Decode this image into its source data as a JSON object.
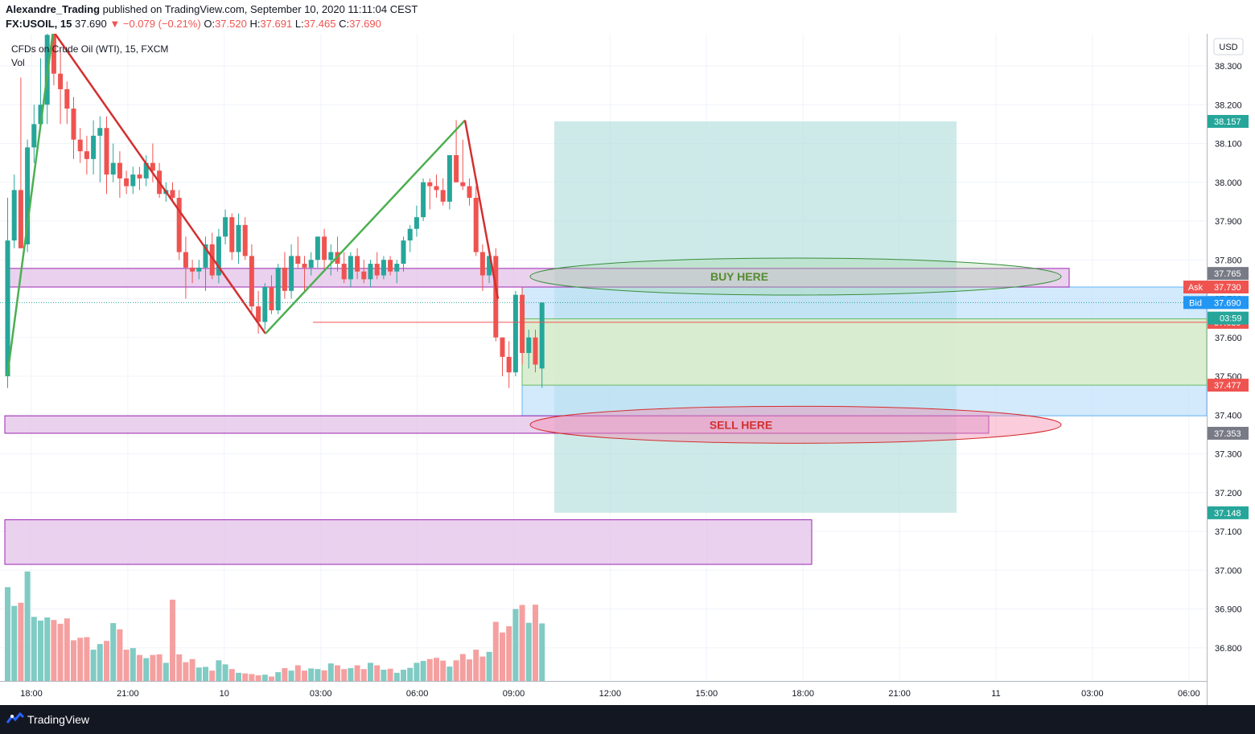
{
  "header": {
    "author": "Alexandre_Trading",
    "published": "published on TradingView.com, September 10, 2020 11:11:04 CEST",
    "symbol_tf": "FX:USOIL, 15",
    "last": "37.690",
    "change": "▼ −0.079 (−0.21%)",
    "o_label": "O:",
    "o": "37.520",
    "h_label": "H:",
    "h": "37.691",
    "l_label": "L:",
    "l": "37.465",
    "c_label": "C:",
    "c": "37.690"
  },
  "legend": {
    "instrument": "CFDs on Crude Oil (WTI), 15, FXCM",
    "vol": "Vol"
  },
  "currency": "USD",
  "annotations": {
    "buy": "BUY HERE",
    "sell": "SELL HERE"
  },
  "countdown": "03:59",
  "footer": {
    "brand": "TradingView"
  },
  "colors": {
    "up": "#26a69a",
    "down": "#ef5350",
    "zone": "#e1bee7",
    "zone_border": "#9c27b0",
    "target": "#b2dfdb",
    "grid": "#f0f3fa"
  },
  "chart_data": {
    "type": "candlestick",
    "y_range": [
      36.72,
      38.39
    ],
    "y_ticks": [
      "38.300",
      "38.200",
      "38.100",
      "38.000",
      "37.900",
      "37.800",
      "37.700",
      "37.600",
      "37.500",
      "37.400",
      "37.300",
      "37.200",
      "37.100",
      "37.000",
      "36.900",
      "36.800"
    ],
    "x_ticks": [
      "18:00",
      "21:00",
      "10",
      "03:00",
      "06:00",
      "09:00",
      "12:00",
      "15:00",
      "18:00",
      "21:00",
      "11",
      "03:00",
      "06:00"
    ],
    "price_labels": [
      {
        "prefix": "",
        "text": "38.157",
        "value": 38.157,
        "color": "#26a69a"
      },
      {
        "prefix": "",
        "text": "37.765",
        "value": 37.765,
        "color": "#787b86"
      },
      {
        "prefix": "Ask",
        "text": "37.730",
        "value": 37.73,
        "color": "#ef5350"
      },
      {
        "prefix": "",
        "text": "37.690",
        "value": 37.69,
        "color": "#26a69a"
      },
      {
        "prefix": "Bid",
        "text": "37.690",
        "value": 37.69,
        "color": "#2196f3"
      },
      {
        "prefix": "",
        "text": "37.639",
        "value": 37.639,
        "color": "#ef5350"
      },
      {
        "prefix": "",
        "text": "37.477",
        "value": 37.477,
        "color": "#ef5350"
      },
      {
        "prefix": "",
        "text": "37.353",
        "value": 37.353,
        "color": "#787b86"
      },
      {
        "prefix": "",
        "text": "37.148",
        "value": 37.148,
        "color": "#26a69a"
      }
    ],
    "zones": [
      {
        "label": "upper",
        "from": 37.73,
        "to": 37.778
      },
      {
        "label": "lower",
        "from": 37.353,
        "to": 37.398
      },
      {
        "label": "bottom",
        "from": 37.015,
        "to": 37.13
      }
    ],
    "target_box": {
      "from": 37.148,
      "to": 38.157
    },
    "position": {
      "stop_top": 37.73,
      "entry": 37.639,
      "avg": 37.648,
      "tp": 37.477,
      "bottom": 37.398
    },
    "zigzag": [
      37.5,
      38.39,
      37.61,
      38.16,
      37.7
    ],
    "candles": [
      {
        "o": 37.5,
        "h": 37.96,
        "l": 37.47,
        "c": 37.85
      },
      {
        "o": 37.85,
        "h": 38.02,
        "l": 37.83,
        "c": 37.98
      },
      {
        "o": 37.98,
        "h": 38.27,
        "l": 37.83,
        "c": 37.83
      },
      {
        "o": 37.84,
        "h": 38.11,
        "l": 37.82,
        "c": 38.09
      },
      {
        "o": 38.09,
        "h": 38.2,
        "l": 38.05,
        "c": 38.15
      },
      {
        "o": 38.15,
        "h": 38.32,
        "l": 38.15,
        "c": 38.2
      },
      {
        "o": 38.2,
        "h": 38.39,
        "l": 38.15,
        "c": 38.38
      },
      {
        "o": 38.38,
        "h": 38.39,
        "l": 38.25,
        "c": 38.28
      },
      {
        "o": 38.28,
        "h": 38.34,
        "l": 38.15,
        "c": 38.24
      },
      {
        "o": 38.24,
        "h": 38.26,
        "l": 38.15,
        "c": 38.19
      },
      {
        "o": 38.19,
        "h": 38.22,
        "l": 38.06,
        "c": 38.11
      },
      {
        "o": 38.11,
        "h": 38.14,
        "l": 38.05,
        "c": 38.08
      },
      {
        "o": 38.08,
        "h": 38.12,
        "l": 38.02,
        "c": 38.06
      },
      {
        "o": 38.06,
        "h": 38.16,
        "l": 38.02,
        "c": 38.12
      },
      {
        "o": 38.12,
        "h": 38.17,
        "l": 38.0,
        "c": 38.14
      },
      {
        "o": 38.14,
        "h": 38.17,
        "l": 37.97,
        "c": 38.02
      },
      {
        "o": 38.02,
        "h": 38.1,
        "l": 38.0,
        "c": 38.05
      },
      {
        "o": 38.05,
        "h": 38.08,
        "l": 37.96,
        "c": 38.01
      },
      {
        "o": 38.01,
        "h": 38.03,
        "l": 37.97,
        "c": 37.99
      },
      {
        "o": 37.99,
        "h": 38.04,
        "l": 37.97,
        "c": 38.02
      },
      {
        "o": 38.02,
        "h": 38.04,
        "l": 37.98,
        "c": 38.01
      },
      {
        "o": 38.01,
        "h": 38.07,
        "l": 37.99,
        "c": 38.05
      },
      {
        "o": 38.05,
        "h": 38.1,
        "l": 38.0,
        "c": 38.03
      },
      {
        "o": 38.03,
        "h": 38.05,
        "l": 37.96,
        "c": 37.97
      },
      {
        "o": 37.97,
        "h": 38.0,
        "l": 37.95,
        "c": 37.98
      },
      {
        "o": 37.98,
        "h": 38.0,
        "l": 37.95,
        "c": 37.96
      },
      {
        "o": 37.96,
        "h": 37.98,
        "l": 37.8,
        "c": 37.82
      },
      {
        "o": 37.82,
        "h": 37.86,
        "l": 37.7,
        "c": 37.78
      },
      {
        "o": 37.78,
        "h": 37.8,
        "l": 37.74,
        "c": 37.77
      },
      {
        "o": 37.77,
        "h": 37.8,
        "l": 37.75,
        "c": 37.78
      },
      {
        "o": 37.78,
        "h": 37.86,
        "l": 37.72,
        "c": 37.84
      },
      {
        "o": 37.84,
        "h": 37.87,
        "l": 37.75,
        "c": 37.76
      },
      {
        "o": 37.76,
        "h": 37.88,
        "l": 37.74,
        "c": 37.86
      },
      {
        "o": 37.86,
        "h": 37.93,
        "l": 37.84,
        "c": 37.91
      },
      {
        "o": 37.91,
        "h": 37.92,
        "l": 37.8,
        "c": 37.82
      },
      {
        "o": 37.82,
        "h": 37.92,
        "l": 37.79,
        "c": 37.89
      },
      {
        "o": 37.89,
        "h": 37.91,
        "l": 37.8,
        "c": 37.81
      },
      {
        "o": 37.81,
        "h": 37.84,
        "l": 37.66,
        "c": 37.68
      },
      {
        "o": 37.68,
        "h": 37.72,
        "l": 37.61,
        "c": 37.64
      },
      {
        "o": 37.64,
        "h": 37.74,
        "l": 37.62,
        "c": 37.73
      },
      {
        "o": 37.73,
        "h": 37.76,
        "l": 37.66,
        "c": 37.67
      },
      {
        "o": 37.67,
        "h": 37.79,
        "l": 37.66,
        "c": 37.78
      },
      {
        "o": 37.78,
        "h": 37.82,
        "l": 37.7,
        "c": 37.72
      },
      {
        "o": 37.72,
        "h": 37.84,
        "l": 37.7,
        "c": 37.81
      },
      {
        "o": 37.81,
        "h": 37.86,
        "l": 37.78,
        "c": 37.79
      },
      {
        "o": 37.79,
        "h": 37.81,
        "l": 37.72,
        "c": 37.78
      },
      {
        "o": 37.78,
        "h": 37.82,
        "l": 37.76,
        "c": 37.8
      },
      {
        "o": 37.8,
        "h": 37.86,
        "l": 37.78,
        "c": 37.86
      },
      {
        "o": 37.86,
        "h": 37.88,
        "l": 37.77,
        "c": 37.8
      },
      {
        "o": 37.8,
        "h": 37.84,
        "l": 37.76,
        "c": 37.82
      },
      {
        "o": 37.82,
        "h": 37.86,
        "l": 37.77,
        "c": 37.79
      },
      {
        "o": 37.79,
        "h": 37.82,
        "l": 37.74,
        "c": 37.75
      },
      {
        "o": 37.75,
        "h": 37.82,
        "l": 37.73,
        "c": 37.81
      },
      {
        "o": 37.81,
        "h": 37.83,
        "l": 37.75,
        "c": 37.77
      },
      {
        "o": 37.77,
        "h": 37.8,
        "l": 37.74,
        "c": 37.75
      },
      {
        "o": 37.75,
        "h": 37.8,
        "l": 37.73,
        "c": 37.79
      },
      {
        "o": 37.79,
        "h": 37.82,
        "l": 37.75,
        "c": 37.76
      },
      {
        "o": 37.76,
        "h": 37.81,
        "l": 37.75,
        "c": 37.8
      },
      {
        "o": 37.8,
        "h": 37.81,
        "l": 37.76,
        "c": 37.77
      },
      {
        "o": 37.77,
        "h": 37.8,
        "l": 37.74,
        "c": 37.79
      },
      {
        "o": 37.79,
        "h": 37.86,
        "l": 37.77,
        "c": 37.85
      },
      {
        "o": 37.85,
        "h": 37.89,
        "l": 37.82,
        "c": 37.88
      },
      {
        "o": 37.88,
        "h": 37.94,
        "l": 37.86,
        "c": 37.91
      },
      {
        "o": 37.91,
        "h": 38.01,
        "l": 37.9,
        "c": 38.0
      },
      {
        "o": 38.0,
        "h": 38.01,
        "l": 37.93,
        "c": 37.99
      },
      {
        "o": 37.99,
        "h": 38.02,
        "l": 37.96,
        "c": 37.98
      },
      {
        "o": 37.98,
        "h": 38.01,
        "l": 37.94,
        "c": 37.95
      },
      {
        "o": 37.95,
        "h": 38.07,
        "l": 37.93,
        "c": 38.07
      },
      {
        "o": 38.07,
        "h": 38.16,
        "l": 38.0,
        "c": 38.0
      },
      {
        "o": 38.0,
        "h": 38.11,
        "l": 37.98,
        "c": 37.99
      },
      {
        "o": 37.99,
        "h": 38.01,
        "l": 37.94,
        "c": 37.96
      },
      {
        "o": 37.96,
        "h": 37.99,
        "l": 37.81,
        "c": 37.82
      },
      {
        "o": 37.82,
        "h": 37.84,
        "l": 37.72,
        "c": 37.76
      },
      {
        "o": 37.76,
        "h": 37.82,
        "l": 37.74,
        "c": 37.81
      },
      {
        "o": 37.81,
        "h": 37.83,
        "l": 37.59,
        "c": 37.6
      },
      {
        "o": 37.6,
        "h": 37.6,
        "l": 37.5,
        "c": 37.55
      },
      {
        "o": 37.55,
        "h": 37.59,
        "l": 37.47,
        "c": 37.51
      },
      {
        "o": 37.51,
        "h": 37.72,
        "l": 37.5,
        "c": 37.71
      },
      {
        "o": 37.71,
        "h": 37.73,
        "l": 37.53,
        "c": 37.56
      },
      {
        "o": 37.56,
        "h": 37.62,
        "l": 37.52,
        "c": 37.6
      },
      {
        "o": 37.6,
        "h": 37.62,
        "l": 37.51,
        "c": 37.53
      },
      {
        "o": 37.52,
        "h": 37.69,
        "l": 37.47,
        "c": 37.69
      }
    ],
    "volume_range": [
      0,
      450
    ],
    "volumes": [
      300,
      240,
      250,
      350,
      205,
      193,
      203,
      195,
      183,
      200,
      130,
      138,
      140,
      100,
      118,
      128,
      185,
      165,
      100,
      105,
      83,
      73,
      83,
      85,
      58,
      260,
      85,
      60,
      70,
      43,
      45,
      33,
      66,
      53,
      38,
      26,
      24,
      22,
      18,
      20,
      14,
      28,
      41,
      33,
      50,
      33,
      40,
      38,
      34,
      56,
      50,
      38,
      41,
      50,
      38,
      58,
      50,
      36,
      39,
      26,
      36,
      42,
      58,
      64,
      70,
      74,
      65,
      46,
      66,
      86,
      69,
      100,
      78,
      93,
      189,
      155,
      175,
      230,
      243,
      186,
      244,
      184
    ]
  }
}
